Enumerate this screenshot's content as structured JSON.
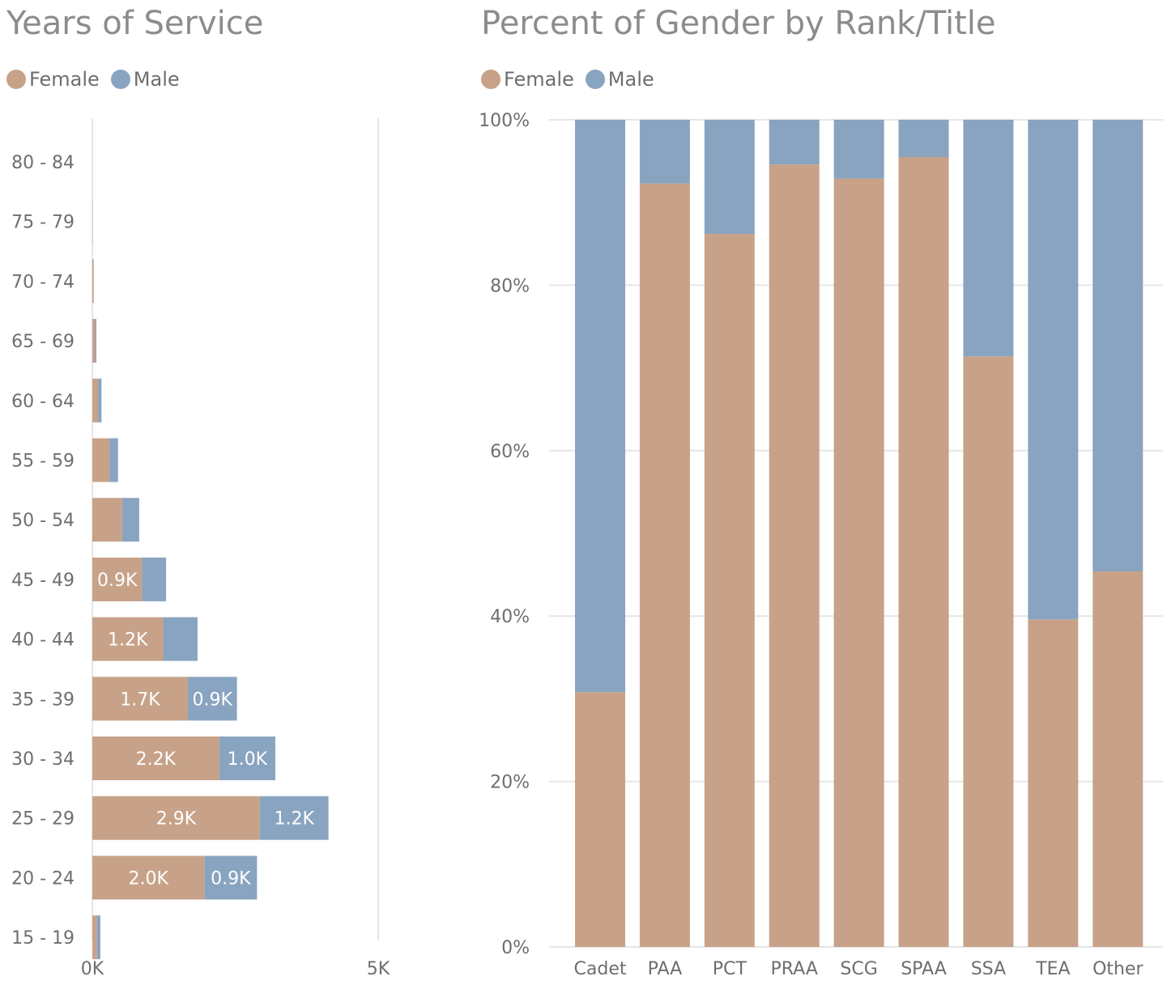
{
  "colors": {
    "female": "#c7a288",
    "male": "#89a4c0",
    "grid": "#e6e6e6",
    "axis_text": "#6e6e6e",
    "title": "#8c8c8c"
  },
  "chart_data": [
    {
      "type": "bar",
      "orientation": "horizontal",
      "stacked": true,
      "title": "Years of Service",
      "legend": {
        "position": "top-left",
        "entries": [
          "Female",
          "Male"
        ]
      },
      "categories": [
        "80 - 84",
        "75 - 79",
        "70 - 74",
        "65 - 69",
        "60 - 64",
        "55 - 59",
        "50 - 54",
        "45 - 49",
        "40 - 44",
        "35 - 39",
        "30 - 34",
        "25 - 29",
        "20 - 24",
        "15 - 19"
      ],
      "series": [
        {
          "name": "Female",
          "values": [
            0,
            0.005,
            0.02,
            0.05,
            0.1,
            0.3,
            0.52,
            0.87,
            1.24,
            1.67,
            2.22,
            2.93,
            1.96,
            0.08
          ],
          "labels": [
            "",
            "",
            "",
            "",
            "",
            "",
            "",
            "0.9K",
            "1.2K",
            "1.7K",
            "2.2K",
            "2.9K",
            "2.0K",
            ""
          ]
        },
        {
          "name": "Male",
          "values": [
            0,
            0,
            0.005,
            0.02,
            0.06,
            0.15,
            0.3,
            0.42,
            0.6,
            0.86,
            0.98,
            1.2,
            0.92,
            0.06
          ],
          "labels": [
            "",
            "",
            "",
            "",
            "",
            "",
            "",
            "",
            "",
            "0.9K",
            "1.0K",
            "1.2K",
            "0.9K",
            ""
          ]
        }
      ],
      "xlim": [
        0,
        5
      ],
      "x_unit": "K",
      "x_ticks": [
        {
          "value": 0,
          "label": "0K"
        },
        {
          "value": 5,
          "label": "5K"
        }
      ],
      "grid": true
    },
    {
      "type": "bar",
      "orientation": "vertical",
      "stacked": true,
      "percent": true,
      "title": "Percent of Gender by Rank/Title",
      "legend": {
        "position": "top-left",
        "entries": [
          "Female",
          "Male"
        ]
      },
      "categories": [
        "Cadet",
        "PAA",
        "PCT",
        "PRAA",
        "SCG",
        "SPAA",
        "SSA",
        "TEA",
        "Other"
      ],
      "series": [
        {
          "name": "Female",
          "values": [
            30.8,
            92.3,
            86.2,
            94.6,
            92.9,
            95.5,
            71.4,
            39.6,
            45.4
          ]
        },
        {
          "name": "Male",
          "values": [
            69.2,
            7.7,
            13.8,
            5.4,
            7.1,
            4.5,
            28.6,
            60.4,
            54.6
          ]
        }
      ],
      "ylim": [
        0,
        100
      ],
      "y_ticks": [
        {
          "value": 0,
          "label": "0%"
        },
        {
          "value": 20,
          "label": "20%"
        },
        {
          "value": 40,
          "label": "40%"
        },
        {
          "value": 60,
          "label": "60%"
        },
        {
          "value": 80,
          "label": "80%"
        },
        {
          "value": 100,
          "label": "100%"
        }
      ],
      "grid": true
    }
  ]
}
